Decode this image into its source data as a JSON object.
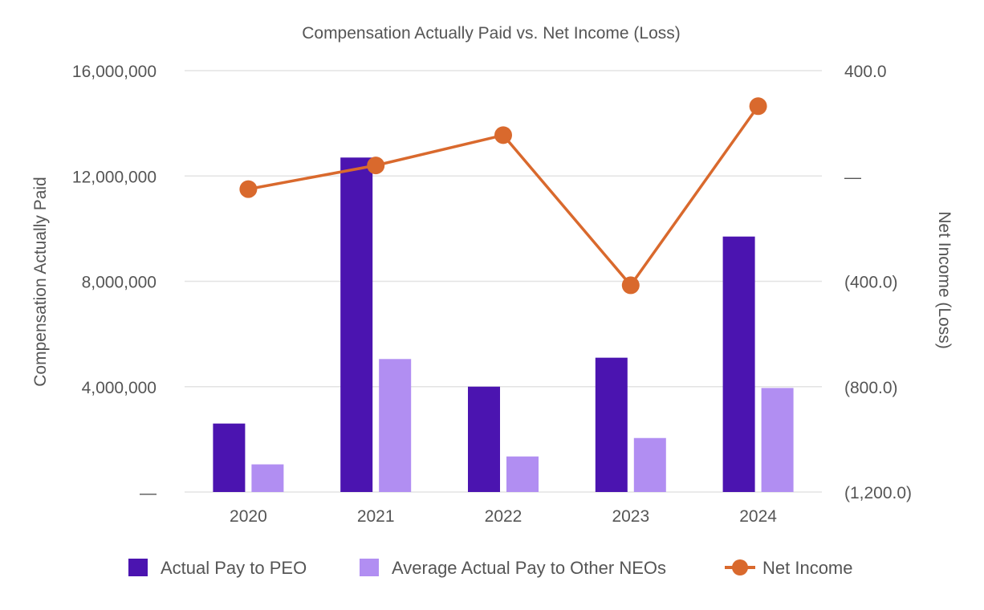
{
  "chart_data": {
    "type": "bar",
    "title": "Compensation Actually Paid vs. Net Income (Loss)",
    "categories": [
      "2020",
      "2021",
      "2022",
      "2023",
      "2024"
    ],
    "ylabel": "Compensation Actually Paid",
    "y2label": "Net Income (Loss)",
    "ylim": [
      0,
      16000000
    ],
    "y2lim": [
      -1200,
      400
    ],
    "y_ticks": [
      {
        "value": 0,
        "label": "—"
      },
      {
        "value": 4000000,
        "label": "4,000,000"
      },
      {
        "value": 8000000,
        "label": "8,000,000"
      },
      {
        "value": 12000000,
        "label": "12,000,000"
      },
      {
        "value": 16000000,
        "label": "16,000,000"
      }
    ],
    "y2_ticks": [
      {
        "value": -1200,
        "label": "(1,200.0)"
      },
      {
        "value": -800,
        "label": "(800.0)"
      },
      {
        "value": -400,
        "label": "(400.0)"
      },
      {
        "value": 0,
        "label": "—"
      },
      {
        "value": 400,
        "label": "400.0"
      }
    ],
    "grid": true,
    "legend_position": "bottom",
    "series": [
      {
        "name": "Actual Pay to PEO",
        "type": "bar",
        "axis": "left",
        "color": "#4b14b0",
        "values": [
          2600000,
          12700000,
          4000000,
          5100000,
          9700000
        ]
      },
      {
        "name": "Average Actual Pay to Other NEOs",
        "type": "bar",
        "axis": "left",
        "color": "#b18ef2",
        "values": [
          1050000,
          5050000,
          1350000,
          2050000,
          3950000
        ]
      },
      {
        "name": "Net Income",
        "type": "line",
        "axis": "right",
        "color": "#d9692d",
        "values": [
          -50,
          40,
          155,
          -415,
          265
        ]
      }
    ]
  }
}
